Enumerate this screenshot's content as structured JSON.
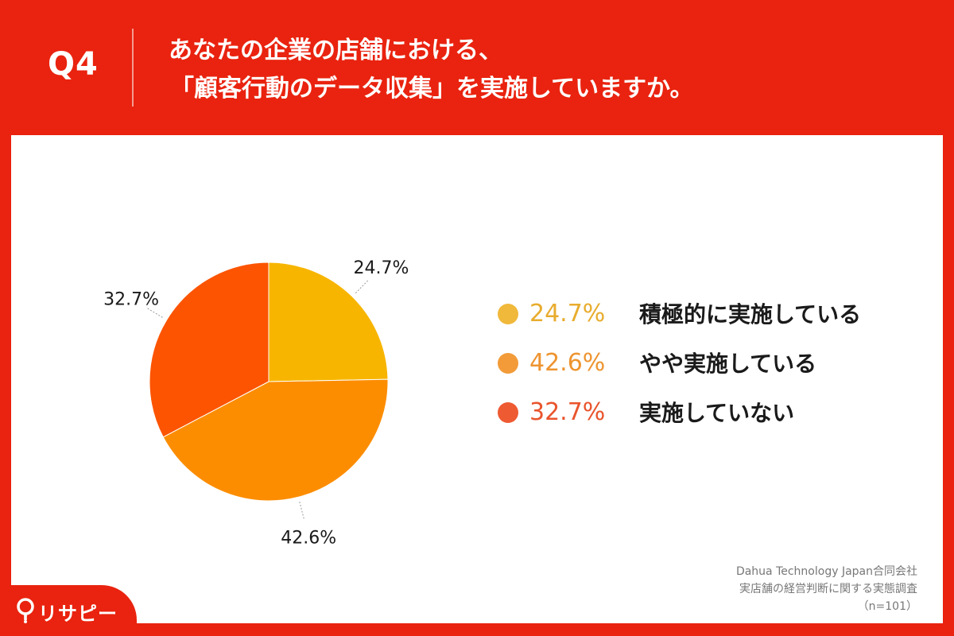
{
  "header": {
    "q_number": "Q4",
    "title_line1": "あなたの企業の店舗における、",
    "title_line2": "「顧客行動のデータ収集」を実施していますか。"
  },
  "chart_data": {
    "type": "pie",
    "categories": [
      "積極的に実施している",
      "やや実施している",
      "実施していない"
    ],
    "values": [
      24.7,
      42.6,
      32.7
    ],
    "value_labels": [
      "24.7%",
      "42.6%",
      "32.7%"
    ],
    "colors": [
      "#f7b500",
      "#fc8d00",
      "#fc5400"
    ],
    "title": "",
    "legend": "right"
  },
  "legend": {
    "items": [
      {
        "pct": "24.7%",
        "label": "積極的に実施している",
        "dot_color": "#f0b93c",
        "pct_color": "#e8ac2d"
      },
      {
        "pct": "42.6%",
        "label": "やや実施している",
        "dot_color": "#f29b38",
        "pct_color": "#ee9430"
      },
      {
        "pct": "32.7%",
        "label": "実施していない",
        "dot_color": "#ee5a32",
        "pct_color": "#e9542c"
      }
    ]
  },
  "source": {
    "company": "Dahua Technology Japan合同会社",
    "survey": "実店舗の経営判断に関する実態調査",
    "sample": "（n=101）"
  },
  "logo": {
    "text": "リサピー",
    "icon": "location-pin-icon",
    "color": "#ffffff"
  }
}
